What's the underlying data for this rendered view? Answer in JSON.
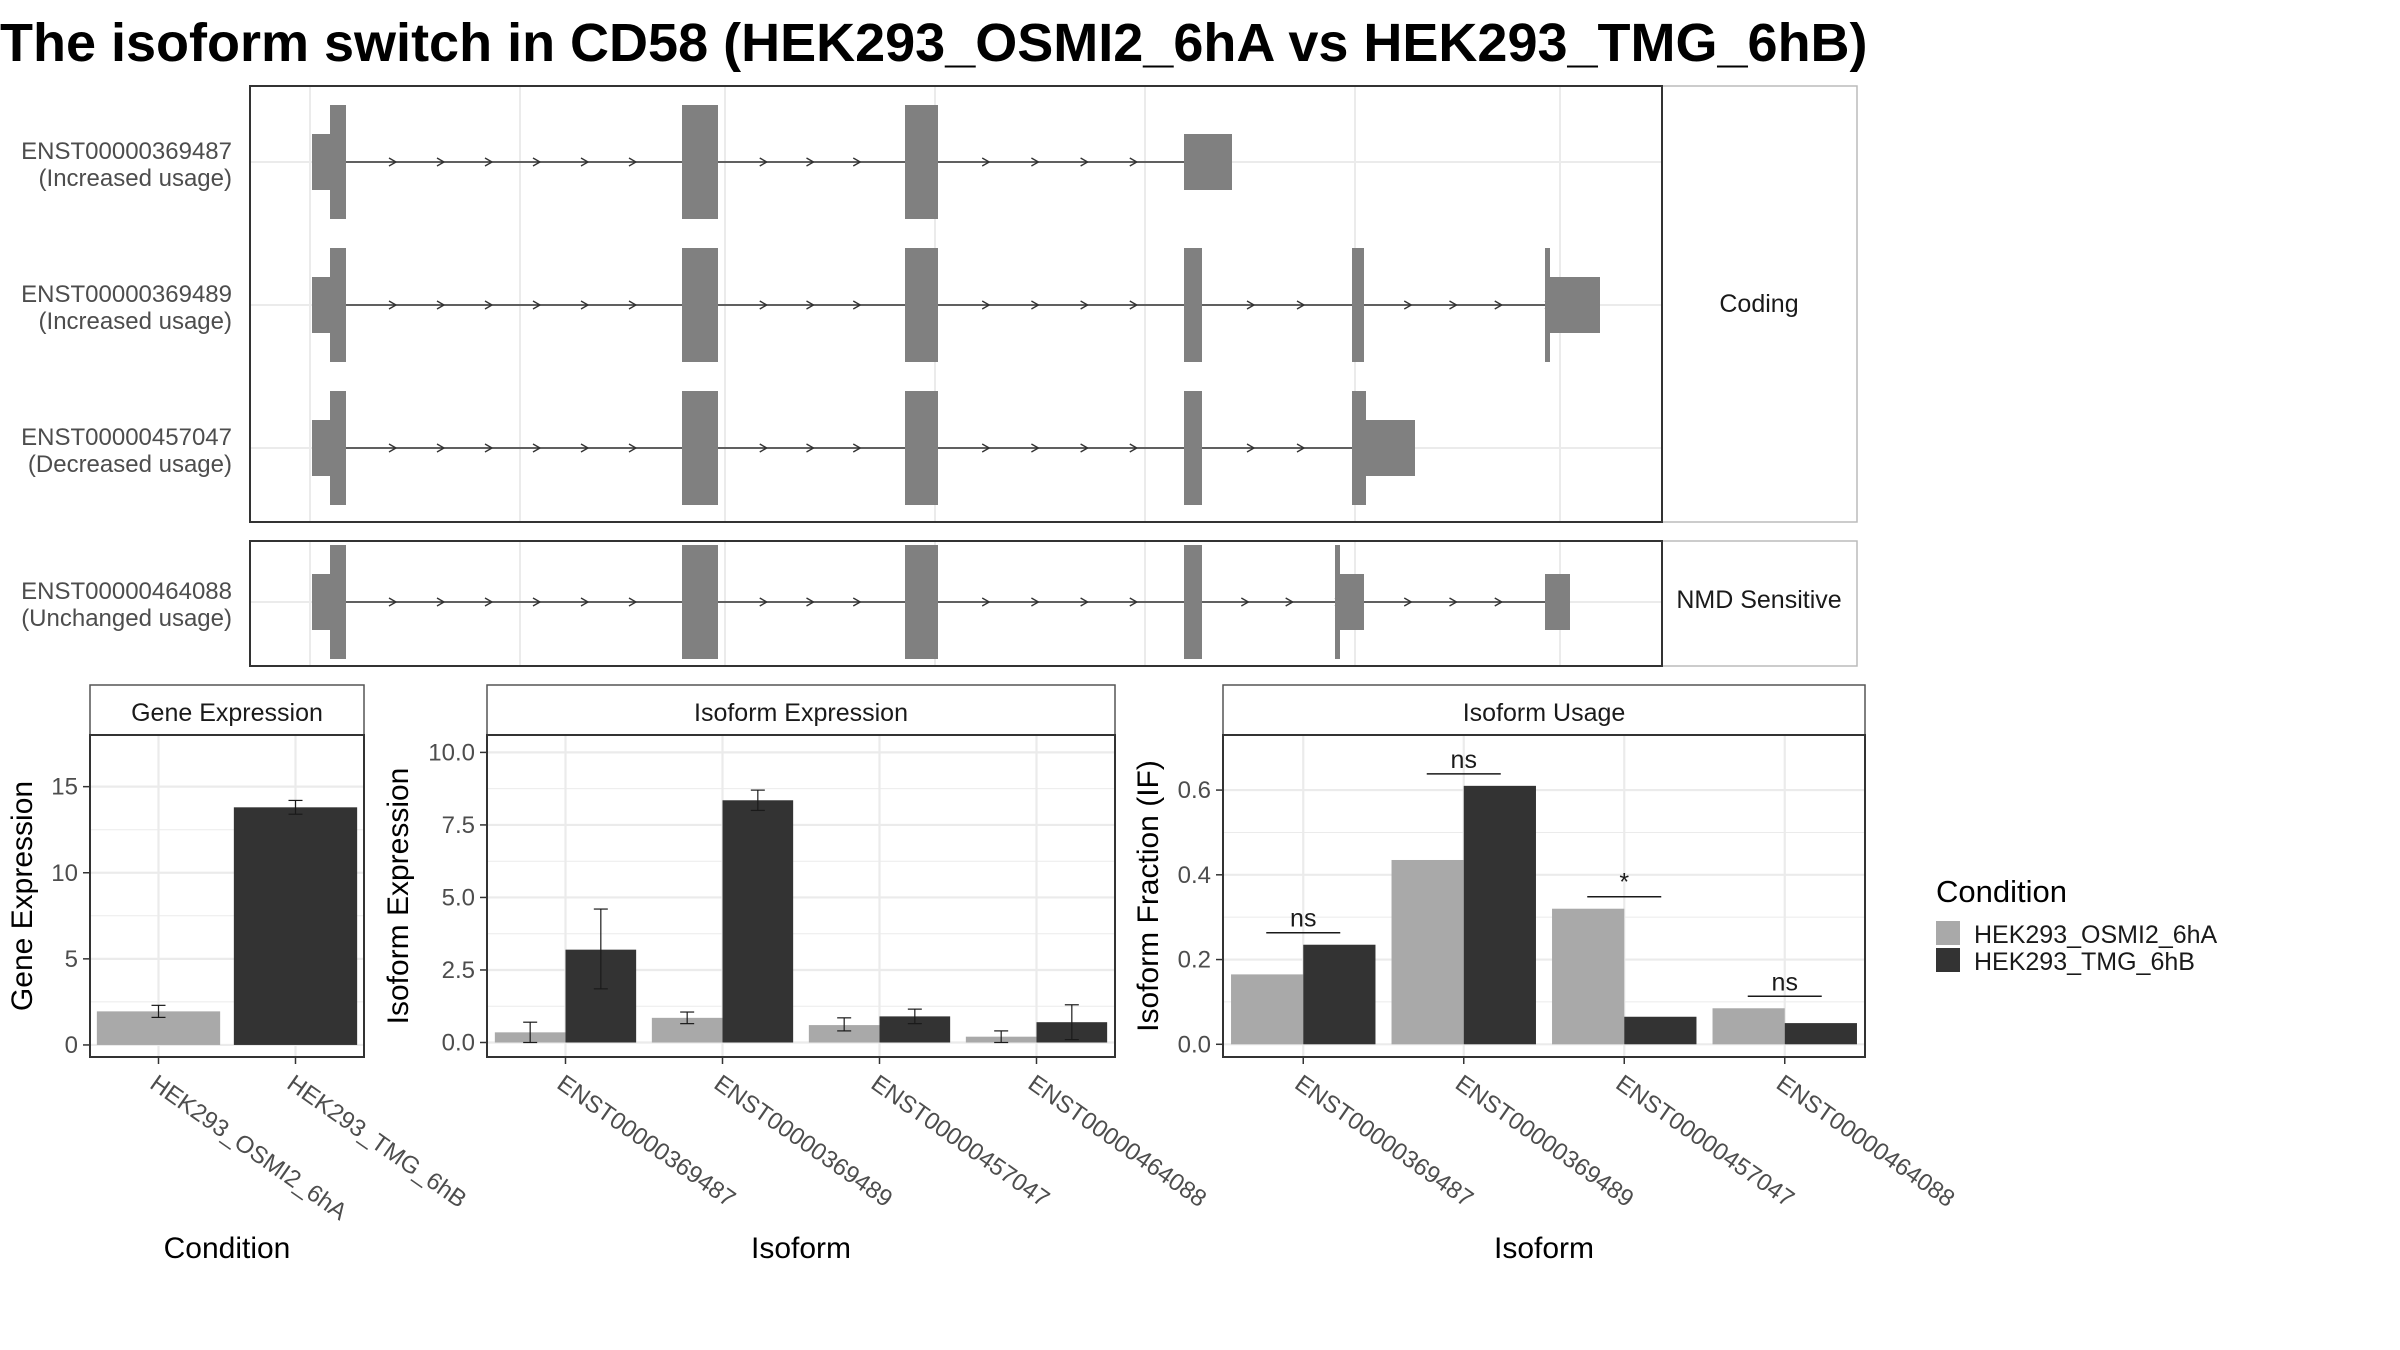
{
  "title": "The isoform switch in CD58 (HEK293_OSMI2_6hA vs HEK293_TMG_6hB)",
  "colors": {
    "cond_a": "#A9A9A9",
    "cond_b": "#333333",
    "exon": "#808080",
    "grid": "#EBEBEB",
    "panel_border": "#333333",
    "strip_border": "#BBBBBB"
  },
  "chart_data": [
    {
      "type": "gene-structure",
      "facets": [
        "Coding",
        "NMD Sensitive"
      ],
      "tracks": [
        {
          "id": "ENST00000369487",
          "label": "(Increased usage)",
          "facet": "Coding"
        },
        {
          "id": "ENST00000369489",
          "label": "(Increased usage)",
          "facet": "Coding"
        },
        {
          "id": "ENST00000457047",
          "label": "(Decreased usage)",
          "facet": "Coding"
        },
        {
          "id": "ENST00000464088",
          "label": "(Unchanged usage)",
          "facet": "NMD Sensitive"
        }
      ]
    },
    {
      "type": "bar",
      "panel_title": "Gene Expression",
      "xlabel": "Condition",
      "ylabel": "Gene Expression",
      "ylim": [
        -0.7,
        18
      ],
      "yticks": [
        "0",
        "5",
        "10",
        "15"
      ],
      "categories": [
        "HEK293_OSMI2_6hA",
        "HEK293_TMG_6hB"
      ],
      "values": [
        1.95,
        13.8
      ],
      "errors": [
        [
          1.6,
          2.3
        ],
        [
          13.4,
          14.2
        ]
      ]
    },
    {
      "type": "bar",
      "panel_title": "Isoform Expression",
      "xlabel": "Isoform",
      "ylabel": "Isoform Expression",
      "ylim": [
        -0.5,
        10.6
      ],
      "yticks": [
        "0.0",
        "2.5",
        "5.0",
        "7.5",
        "10.0"
      ],
      "categories": [
        "ENST00000369487",
        "ENST00000369489",
        "ENST00000457047",
        "ENST00000464088"
      ],
      "series": [
        {
          "name": "HEK293_OSMI2_6hA",
          "values": [
            0.35,
            0.85,
            0.6,
            0.2
          ],
          "errors": [
            [
              0.0,
              0.7
            ],
            [
              0.65,
              1.05
            ],
            [
              0.4,
              0.85
            ],
            [
              0.0,
              0.4
            ]
          ]
        },
        {
          "name": "HEK293_TMG_6hB",
          "values": [
            3.2,
            8.35,
            0.9,
            0.7
          ],
          "errors": [
            [
              1.85,
              4.6
            ],
            [
              8.0,
              8.7
            ],
            [
              0.65,
              1.15
            ],
            [
              0.1,
              1.3
            ]
          ]
        }
      ]
    },
    {
      "type": "bar",
      "panel_title": "Isoform Usage",
      "xlabel": "Isoform",
      "ylabel": "Isoform Fraction (IF)",
      "ylim": [
        -0.03,
        0.73
      ],
      "yticks": [
        "0.0",
        "0.2",
        "0.4",
        "0.6"
      ],
      "categories": [
        "ENST00000369487",
        "ENST00000369489",
        "ENST00000457047",
        "ENST00000464088"
      ],
      "series": [
        {
          "name": "HEK293_OSMI2_6hA",
          "values": [
            0.165,
            0.435,
            0.32,
            0.085
          ]
        },
        {
          "name": "HEK293_TMG_6hB",
          "values": [
            0.235,
            0.61,
            0.065,
            0.05
          ]
        }
      ],
      "significance": [
        "ns",
        "ns",
        "*",
        "ns"
      ]
    }
  ],
  "legend": {
    "title": "Condition",
    "items": [
      "HEK293_OSMI2_6hA",
      "HEK293_TMG_6hB"
    ]
  }
}
